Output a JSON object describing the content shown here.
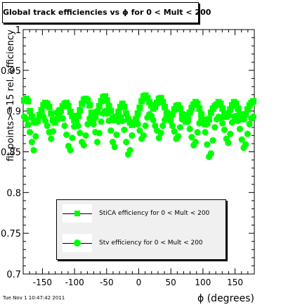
{
  "canvas": {
    "timestamp": "Tue Nov  1 10:47:42 2011"
  },
  "chart_data": {
    "type": "scatter",
    "title": "Global track efficiencies vs ϕ for 0 < Mult < 200",
    "xlabel": "ϕ (degrees)",
    "ylabel": "fit points>=15 rel. efficiency",
    "xlim": [
      -180,
      180
    ],
    "ylim": [
      0.7,
      1.0
    ],
    "xticks": [
      -150,
      -100,
      -50,
      0,
      50,
      100,
      150
    ],
    "xtick_labels": [
      "-150",
      "-100",
      "-50",
      "0",
      "50",
      "100",
      "150"
    ],
    "yticks": [
      0.7,
      0.75,
      0.8,
      0.85,
      0.9,
      0.95,
      1.0
    ],
    "ytick_labels": [
      "0.7",
      "0.75",
      "0.8",
      "0.85",
      "0.9",
      "0.95",
      "1"
    ],
    "grid": false,
    "legend_position": "bottom-center",
    "series": [
      {
        "name": "StiCA efficiency  for 0 < Mult < 200",
        "marker": "square",
        "color": "#00ff00",
        "x": [
          -178.5,
          -175.5,
          -172.5,
          -169.5,
          -166.5,
          -163.5,
          -160.5,
          -157.5,
          -154.5,
          -151.5,
          -148.5,
          -145.5,
          -142.5,
          -139.5,
          -136.5,
          -133.5,
          -130.5,
          -127.5,
          -124.5,
          -121.5,
          -118.5,
          -115.5,
          -112.5,
          -109.5,
          -106.5,
          -103.5,
          -100.5,
          -97.5,
          -94.5,
          -91.5,
          -88.5,
          -85.5,
          -82.5,
          -79.5,
          -76.5,
          -73.5,
          -70.5,
          -67.5,
          -64.5,
          -61.5,
          -58.5,
          -55.5,
          -52.5,
          -49.5,
          -46.5,
          -43.5,
          -40.5,
          -37.5,
          -34.5,
          -31.5,
          -28.5,
          -25.5,
          -22.5,
          -19.5,
          -16.5,
          -13.5,
          -10.5,
          -7.5,
          -4.5,
          -1.5,
          1.5,
          4.5,
          7.5,
          10.5,
          13.5,
          16.5,
          19.5,
          22.5,
          25.5,
          28.5,
          31.5,
          34.5,
          37.5,
          40.5,
          43.5,
          46.5,
          49.5,
          52.5,
          55.5,
          58.5,
          61.5,
          64.5,
          67.5,
          70.5,
          73.5,
          76.5,
          79.5,
          82.5,
          85.5,
          88.5,
          91.5,
          94.5,
          97.5,
          100.5,
          103.5,
          106.5,
          109.5,
          112.5,
          115.5,
          118.5,
          121.5,
          124.5,
          127.5,
          130.5,
          133.5,
          136.5,
          139.5,
          142.5,
          145.5,
          148.5,
          151.5,
          154.5,
          157.5,
          160.5,
          163.5,
          166.5,
          169.5,
          172.5,
          175.5,
          178.5
        ],
        "y": [
          0.913,
          0.915,
          0.912,
          0.9,
          0.893,
          0.887,
          0.886,
          0.888,
          0.895,
          0.901,
          0.907,
          0.91,
          0.909,
          0.905,
          0.897,
          0.889,
          0.886,
          0.89,
          0.896,
          0.901,
          0.906,
          0.909,
          0.91,
          0.906,
          0.899,
          0.894,
          0.889,
          0.888,
          0.894,
          0.901,
          0.909,
          0.914,
          0.915,
          0.913,
          0.907,
          0.898,
          0.891,
          0.893,
          0.899,
          0.906,
          0.912,
          0.917,
          0.918,
          0.913,
          0.906,
          0.9,
          0.892,
          0.889,
          0.893,
          0.899,
          0.905,
          0.909,
          0.905,
          0.897,
          0.89,
          0.886,
          0.883,
          0.886,
          0.89,
          0.897,
          0.904,
          0.912,
          0.918,
          0.919,
          0.916,
          0.911,
          0.907,
          0.903,
          0.905,
          0.91,
          0.915,
          0.916,
          0.911,
          0.905,
          0.898,
          0.894,
          0.893,
          0.896,
          0.902,
          0.906,
          0.907,
          0.903,
          0.896,
          0.89,
          0.887,
          0.89,
          0.898,
          0.904,
          0.908,
          0.911,
          0.909,
          0.903,
          0.896,
          0.889,
          0.884,
          0.885,
          0.89,
          0.898,
          0.903,
          0.906,
          0.908,
          0.911,
          0.909,
          0.903,
          0.897,
          0.893,
          0.895,
          0.902,
          0.907,
          0.911,
          0.909,
          0.903,
          0.896,
          0.891,
          0.89,
          0.896,
          0.902,
          0.907,
          0.91,
          0.912
        ]
      },
      {
        "name": "Stv efficiency  for 0 < Mult < 200",
        "marker": "circle",
        "color": "#00ff00",
        "x": [
          -178.5,
          -175.5,
          -172.5,
          -169.5,
          -166.5,
          -163.5,
          -160.5,
          -157.5,
          -154.5,
          -151.5,
          -148.5,
          -145.5,
          -142.5,
          -139.5,
          -136.5,
          -133.5,
          -130.5,
          -127.5,
          -124.5,
          -121.5,
          -118.5,
          -115.5,
          -112.5,
          -109.5,
          -106.5,
          -103.5,
          -100.5,
          -97.5,
          -94.5,
          -91.5,
          -88.5,
          -85.5,
          -82.5,
          -79.5,
          -76.5,
          -73.5,
          -70.5,
          -67.5,
          -64.5,
          -61.5,
          -58.5,
          -55.5,
          -52.5,
          -49.5,
          -46.5,
          -43.5,
          -40.5,
          -37.5,
          -34.5,
          -31.5,
          -28.5,
          -25.5,
          -22.5,
          -19.5,
          -16.5,
          -13.5,
          -10.5,
          -7.5,
          -4.5,
          -1.5,
          1.5,
          4.5,
          7.5,
          10.5,
          13.5,
          16.5,
          19.5,
          22.5,
          25.5,
          28.5,
          31.5,
          34.5,
          37.5,
          40.5,
          43.5,
          46.5,
          49.5,
          52.5,
          55.5,
          58.5,
          61.5,
          64.5,
          67.5,
          70.5,
          73.5,
          76.5,
          79.5,
          82.5,
          85.5,
          88.5,
          91.5,
          94.5,
          97.5,
          100.5,
          103.5,
          106.5,
          109.5,
          112.5,
          115.5,
          118.5,
          121.5,
          124.5,
          127.5,
          130.5,
          133.5,
          136.5,
          139.5,
          142.5,
          145.5,
          148.5,
          151.5,
          154.5,
          157.5,
          160.5,
          163.5,
          166.5,
          169.5,
          172.5,
          175.5,
          178.5
        ],
        "y": [
          0.893,
          0.89,
          0.883,
          0.874,
          0.862,
          0.852,
          0.869,
          0.888,
          0.895,
          0.896,
          0.893,
          0.888,
          0.882,
          0.874,
          0.866,
          0.875,
          0.89,
          0.898,
          0.901,
          0.899,
          0.891,
          0.882,
          0.871,
          0.857,
          0.852,
          0.867,
          0.881,
          0.886,
          0.882,
          0.873,
          0.862,
          0.858,
          0.87,
          0.884,
          0.891,
          0.89,
          0.884,
          0.874,
          0.862,
          0.873,
          0.887,
          0.897,
          0.9,
          0.897,
          0.888,
          0.876,
          0.862,
          0.856,
          0.871,
          0.887,
          0.893,
          0.888,
          0.877,
          0.862,
          0.847,
          0.852,
          0.87,
          0.884,
          0.888,
          0.884,
          0.876,
          0.866,
          0.87,
          0.882,
          0.892,
          0.896,
          0.894,
          0.889,
          0.882,
          0.876,
          0.867,
          0.873,
          0.882,
          0.889,
          0.893,
          0.892,
          0.888,
          0.882,
          0.875,
          0.866,
          0.869,
          0.88,
          0.89,
          0.896,
          0.894,
          0.887,
          0.878,
          0.868,
          0.858,
          0.862,
          0.874,
          0.885,
          0.89,
          0.885,
          0.874,
          0.859,
          0.844,
          0.848,
          0.864,
          0.88,
          0.89,
          0.893,
          0.891,
          0.885,
          0.877,
          0.866,
          0.861,
          0.872,
          0.886,
          0.893,
          0.894,
          0.888,
          0.878,
          0.865,
          0.855,
          0.859,
          0.872,
          0.884,
          0.891,
          0.893
        ]
      }
    ]
  }
}
